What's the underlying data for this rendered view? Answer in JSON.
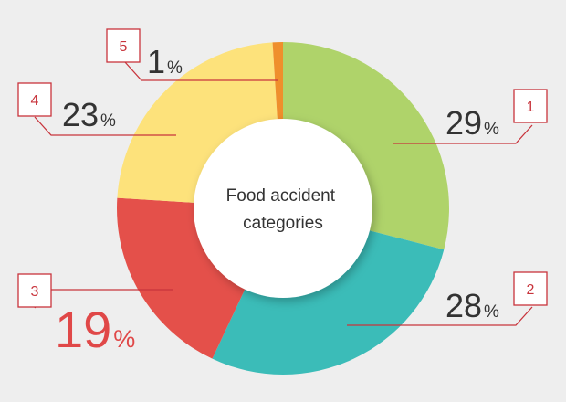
{
  "chart_data": {
    "type": "pie",
    "variant": "donut",
    "center_label": [
      "Food accident",
      "categories"
    ],
    "title": "",
    "legend": "none",
    "slices": [
      {
        "id": "1",
        "value": 29,
        "value_label": "29",
        "unit": "%",
        "color": "#afd36a"
      },
      {
        "id": "2",
        "value": 28,
        "value_label": "28",
        "unit": "%",
        "color": "#3bbcb8"
      },
      {
        "id": "3",
        "value": 19,
        "value_label": "19",
        "unit": "%",
        "color": "#e4504a",
        "highlight": true
      },
      {
        "id": "4",
        "value": 23,
        "value_label": "23",
        "unit": "%",
        "color": "#fde27b"
      },
      {
        "id": "5",
        "value": 1,
        "value_label": "1",
        "unit": "%",
        "color": "#ef8f2c"
      }
    ]
  },
  "colors": {
    "background": "#eeeeee",
    "callout": "#c8343c",
    "text_dark": "#333333",
    "highlight_text": "#e04848",
    "center_fill": "#ffffff"
  }
}
